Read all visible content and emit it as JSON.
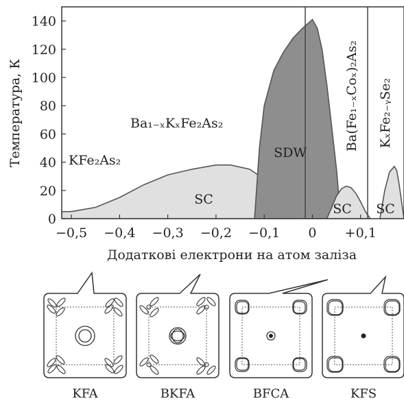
{
  "chart_data": {
    "type": "area",
    "xlabel": "Додаткові електрони на атом заліза",
    "ylabel": "Температура, К",
    "xlim": [
      -0.52,
      0.19
    ],
    "ylim": [
      0,
      150
    ],
    "x_ticks": [
      -0.5,
      -0.4,
      -0.3,
      -0.2,
      -0.1,
      0,
      0.1
    ],
    "x_tick_labels": [
      "−0,5",
      "−0,4",
      "−0,3",
      "−0,2",
      "−0,1",
      "0",
      "+0,1"
    ],
    "y_ticks": [
      0,
      20,
      40,
      60,
      80,
      100,
      120,
      140
    ],
    "region_boundaries_x": [
      0,
      0.13
    ],
    "compounds": {
      "kfa": "KFe₂As₂",
      "bkfa": "Ba₁₋ₓKₓFe₂As₂",
      "bfca": "Ba(Fe₁₋ₓCoₓ)₂As₂",
      "kfs": "KₓFe₂₋ᵧSe₂"
    },
    "series": [
      {
        "name": "SC",
        "color": "#e0e0e0",
        "x": [
          -0.52,
          -0.5,
          -0.45,
          -0.4,
          -0.35,
          -0.3,
          -0.25,
          -0.2,
          -0.17,
          -0.13,
          -0.1,
          -0.08,
          -0.06,
          -0.05
        ],
        "y": [
          5,
          5,
          8,
          15,
          24,
          31,
          35,
          38,
          38,
          35,
          28,
          18,
          6,
          0
        ]
      },
      {
        "name": "SDW",
        "color": "#8e8e8e",
        "x": [
          -0.12,
          -0.11,
          -0.1,
          -0.08,
          -0.06,
          -0.04,
          -0.02,
          0,
          0.01,
          0.02,
          0.03,
          0.04,
          0.05,
          0.055,
          0.06
        ],
        "y": [
          0,
          50,
          80,
          105,
          118,
          128,
          135,
          141,
          135,
          120,
          95,
          65,
          35,
          15,
          0
        ]
      },
      {
        "name": "SC",
        "color": "#e0e0e0",
        "x": [
          0.03,
          0.04,
          0.05,
          0.06,
          0.07,
          0.08,
          0.09,
          0.1,
          0.11,
          0.12
        ],
        "y": [
          0,
          8,
          16,
          21,
          23,
          22,
          18,
          12,
          5,
          0
        ]
      },
      {
        "name": "SC",
        "color": "#e0e0e0",
        "x": [
          0.14,
          0.15,
          0.16,
          0.17,
          0.175,
          0.18,
          0.19
        ],
        "y": [
          0,
          20,
          33,
          37,
          34,
          24,
          0
        ]
      }
    ],
    "region_labels": [
      "SC",
      "SDW",
      "SC",
      "SC"
    ],
    "panels": [
      "KFA",
      "BKFA",
      "BFCA",
      "KFS"
    ]
  }
}
